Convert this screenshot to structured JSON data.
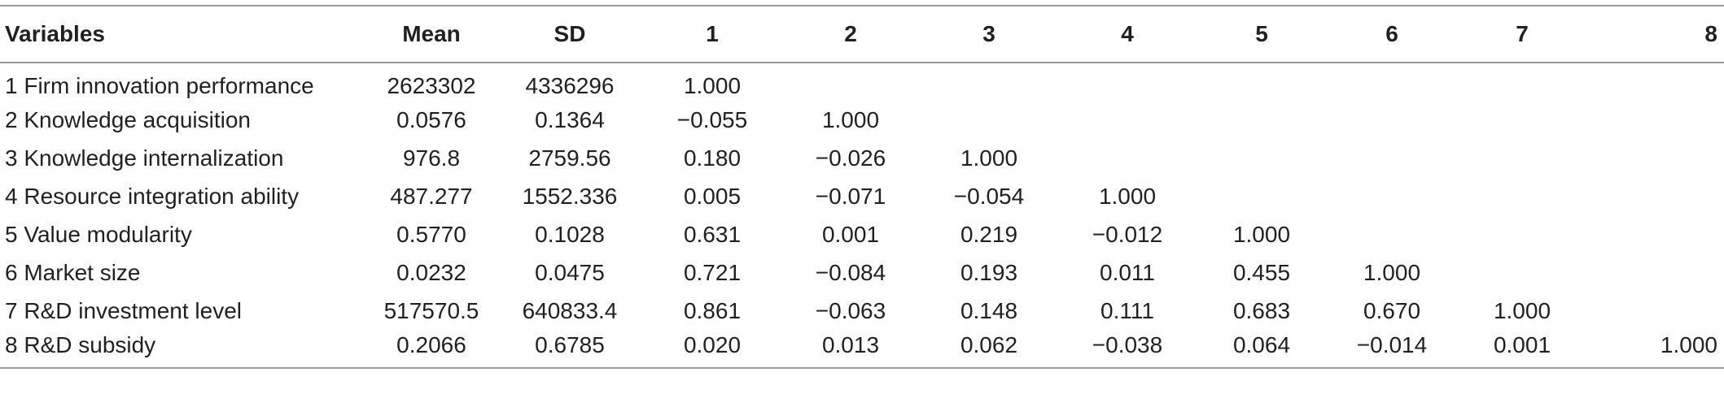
{
  "table": {
    "headers": [
      "Variables",
      "Mean",
      "SD",
      "1",
      "2",
      "3",
      "4",
      "5",
      "6",
      "7",
      "8"
    ],
    "rows": [
      [
        "1 Firm innovation performance",
        "2623302",
        "4336296",
        "1.000",
        "",
        "",
        "",
        "",
        "",
        "",
        ""
      ],
      [
        "2 Knowledge acquisition",
        "0.0576",
        "0.1364",
        "−0.055",
        "1.000",
        "",
        "",
        "",
        "",
        "",
        ""
      ],
      [
        "3 Knowledge internalization",
        "976.8",
        "2759.56",
        "0.180",
        "−0.026",
        "1.000",
        "",
        "",
        "",
        "",
        ""
      ],
      [
        "4 Resource integration ability",
        "487.277",
        "1552.336",
        "0.005",
        "−0.071",
        "−0.054",
        "1.000",
        "",
        "",
        "",
        ""
      ],
      [
        "5 Value modularity",
        "0.5770",
        "0.1028",
        "0.631",
        "0.001",
        "0.219",
        "−0.012",
        "1.000",
        "",
        "",
        ""
      ],
      [
        "6 Market size",
        "0.0232",
        "0.0475",
        "0.721",
        "−0.084",
        "0.193",
        "0.011",
        "0.455",
        "1.000",
        "",
        ""
      ],
      [
        "7 R&D investment level",
        "517570.5",
        "640833.4",
        "0.861",
        "−0.063",
        "0.148",
        "0.111",
        "0.683",
        "0.670",
        "1.000",
        ""
      ],
      [
        "8 R&D subsidy",
        "0.2066",
        "0.6785",
        "0.020",
        "0.013",
        "0.062",
        "−0.038",
        "0.064",
        "−0.014",
        "0.001",
        "1.000"
      ]
    ]
  }
}
